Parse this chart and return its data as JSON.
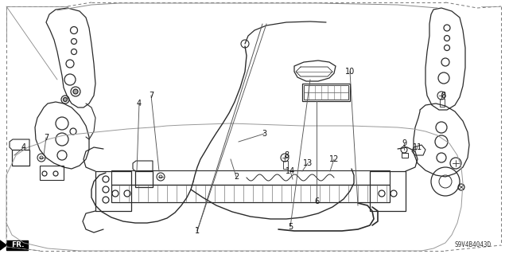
{
  "background_color": "#ffffff",
  "diagram_code": "S9V4B4043D",
  "col": "#2a2a2a",
  "lw": 0.9,
  "border_dash": [
    4,
    3
  ],
  "labels": [
    [
      "1",
      248,
      290
    ],
    [
      "2",
      297,
      222
    ],
    [
      "3",
      332,
      168
    ],
    [
      "4",
      30,
      185
    ],
    [
      "4",
      175,
      130
    ],
    [
      "5",
      365,
      285
    ],
    [
      "6",
      398,
      253
    ],
    [
      "7",
      58,
      173
    ],
    [
      "7",
      190,
      120
    ],
    [
      "8",
      360,
      195
    ],
    [
      "8",
      557,
      120
    ],
    [
      "9",
      508,
      180
    ],
    [
      "10",
      440,
      90
    ],
    [
      "11",
      525,
      185
    ],
    [
      "12",
      420,
      200
    ],
    [
      "13",
      387,
      205
    ],
    [
      "14",
      365,
      215
    ]
  ]
}
